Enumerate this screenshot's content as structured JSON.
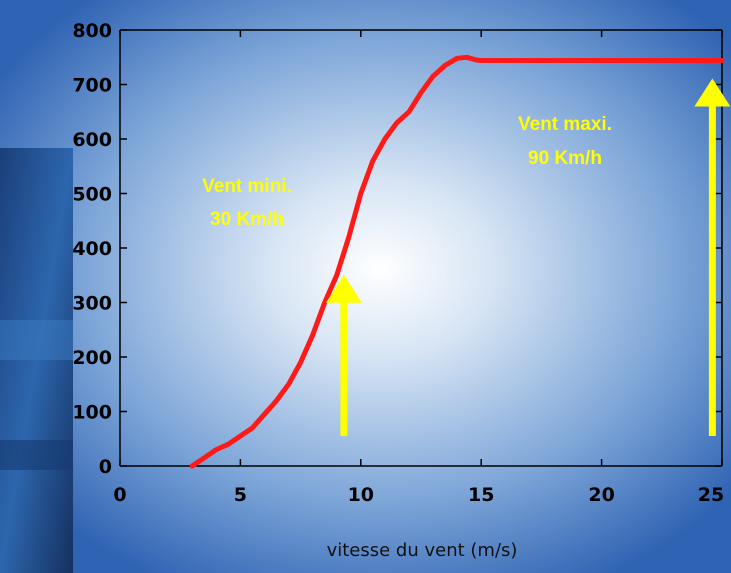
{
  "chart_data": {
    "type": "line",
    "xlabel": "vitesse du vent (m/s)",
    "ylabel": "",
    "xlim": [
      0,
      25
    ],
    "ylim": [
      0,
      800
    ],
    "x_ticks": [
      "0",
      "5",
      "10",
      "15",
      "20",
      "25"
    ],
    "y_ticks": [
      "0",
      "100",
      "200",
      "300",
      "400",
      "500",
      "600",
      "700",
      "800"
    ],
    "grid": false,
    "series": [
      {
        "color": "#ff1a1a",
        "x": [
          3,
          3.5,
          4,
          4.5,
          5,
          5.5,
          6,
          6.5,
          7,
          7.5,
          8,
          8.5,
          9,
          9.5,
          10,
          10.5,
          11,
          11.5,
          12,
          12.5,
          13,
          13.5,
          14,
          14.4,
          14.8,
          15,
          20,
          25
        ],
        "y": [
          0,
          15,
          30,
          40,
          55,
          70,
          95,
          120,
          150,
          190,
          240,
          300,
          350,
          420,
          500,
          560,
          600,
          630,
          650,
          685,
          715,
          735,
          748,
          750,
          745,
          744,
          744,
          744
        ]
      }
    ],
    "annotations": [
      {
        "line1": "Vent mini.",
        "line2": "30 Km/h",
        "x": 9.3,
        "color": "#ffff00"
      },
      {
        "line1": "Vent maxi.",
        "line2": "90 Km/h",
        "x": 24.6,
        "color": "#ffff00"
      }
    ]
  }
}
